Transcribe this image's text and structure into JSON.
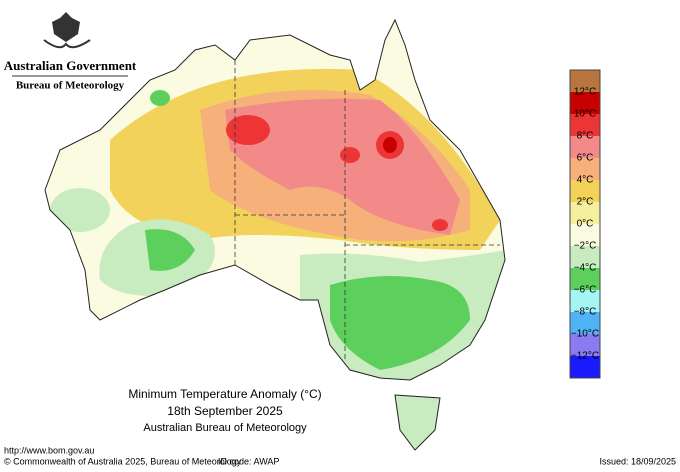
{
  "header": {
    "government": "Australian Government",
    "agency": "Bureau of Meteorology"
  },
  "map": {
    "title": "Minimum Temperature Anomaly (°C)",
    "date": "18th September 2025",
    "source": "Australian Bureau of Meteorology"
  },
  "legend": {
    "labels": [
      "12°C",
      "10°C",
      "8°C",
      "6°C",
      "4°C",
      "2°C",
      "0°C",
      "−2°C",
      "−4°C",
      "−6°C",
      "−8°C",
      "−10°C",
      "−12°C"
    ],
    "colors": [
      "#b8763e",
      "#c80000",
      "#ee3535",
      "#f28a8a",
      "#f6b07a",
      "#f3d25b",
      "#f5f0a0",
      "#fafbe0",
      "#c8ecc0",
      "#5ccf5c",
      "#a6f5f5",
      "#4fb3f5",
      "#8a7bf0",
      "#1a1aff"
    ]
  },
  "footer": {
    "url": "http://www.bom.gov.au",
    "copyright": "© Commonwealth of Australia 2025, Bureau of Meteorology",
    "id_code": "ID code: AWAP",
    "issued": "Issued: 18/09/2025"
  }
}
